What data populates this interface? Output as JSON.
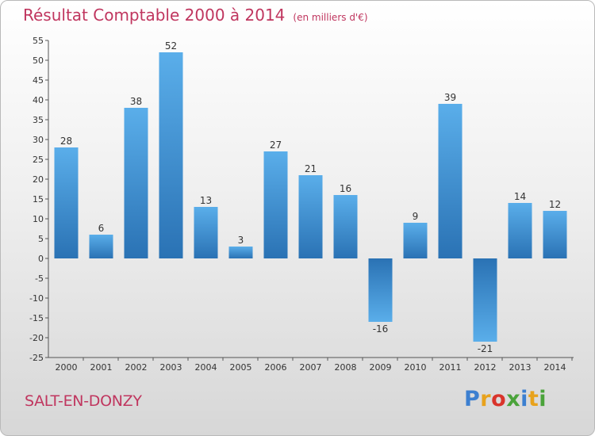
{
  "header": {
    "title": "Résultat Comptable 2000 à 2014",
    "subtitle": "(en milliers d'€)"
  },
  "footer": {
    "commune": "SALT-EN-DONZY",
    "logo_letters": [
      "P",
      "r",
      "o",
      "x",
      "i",
      "t",
      "i"
    ],
    "logo_colors": [
      "#3c7fd0",
      "#e8a21c",
      "#d9342b",
      "#4aa33a",
      "#3c7fd0",
      "#e8a21c",
      "#4aa33a"
    ]
  },
  "colors": {
    "bar_dark": "#2a72b4",
    "bar_light": "#5aaeea",
    "title": "#c0365f"
  },
  "chart_data": {
    "type": "bar",
    "title": "Résultat Comptable 2000 à 2014",
    "subtitle": "(en milliers d'€)",
    "categories": [
      "2000",
      "2001",
      "2002",
      "2003",
      "2004",
      "2005",
      "2006",
      "2007",
      "2008",
      "2009",
      "2010",
      "2011",
      "2012",
      "2013",
      "2014"
    ],
    "values": [
      28,
      6,
      38,
      52,
      13,
      3,
      27,
      21,
      16,
      -16,
      9,
      39,
      -21,
      14,
      12
    ],
    "data_labels": [
      "28",
      "6",
      "38",
      "52",
      "13",
      "3",
      "27",
      "21",
      "16",
      "-16",
      "9",
      "39",
      "-21",
      "14",
      "12"
    ],
    "ylim": [
      -25,
      55
    ],
    "yticks": [
      -25,
      -20,
      -15,
      -10,
      -5,
      0,
      5,
      10,
      15,
      20,
      25,
      30,
      35,
      40,
      45,
      50,
      55
    ],
    "grid": false,
    "legend": "none"
  }
}
